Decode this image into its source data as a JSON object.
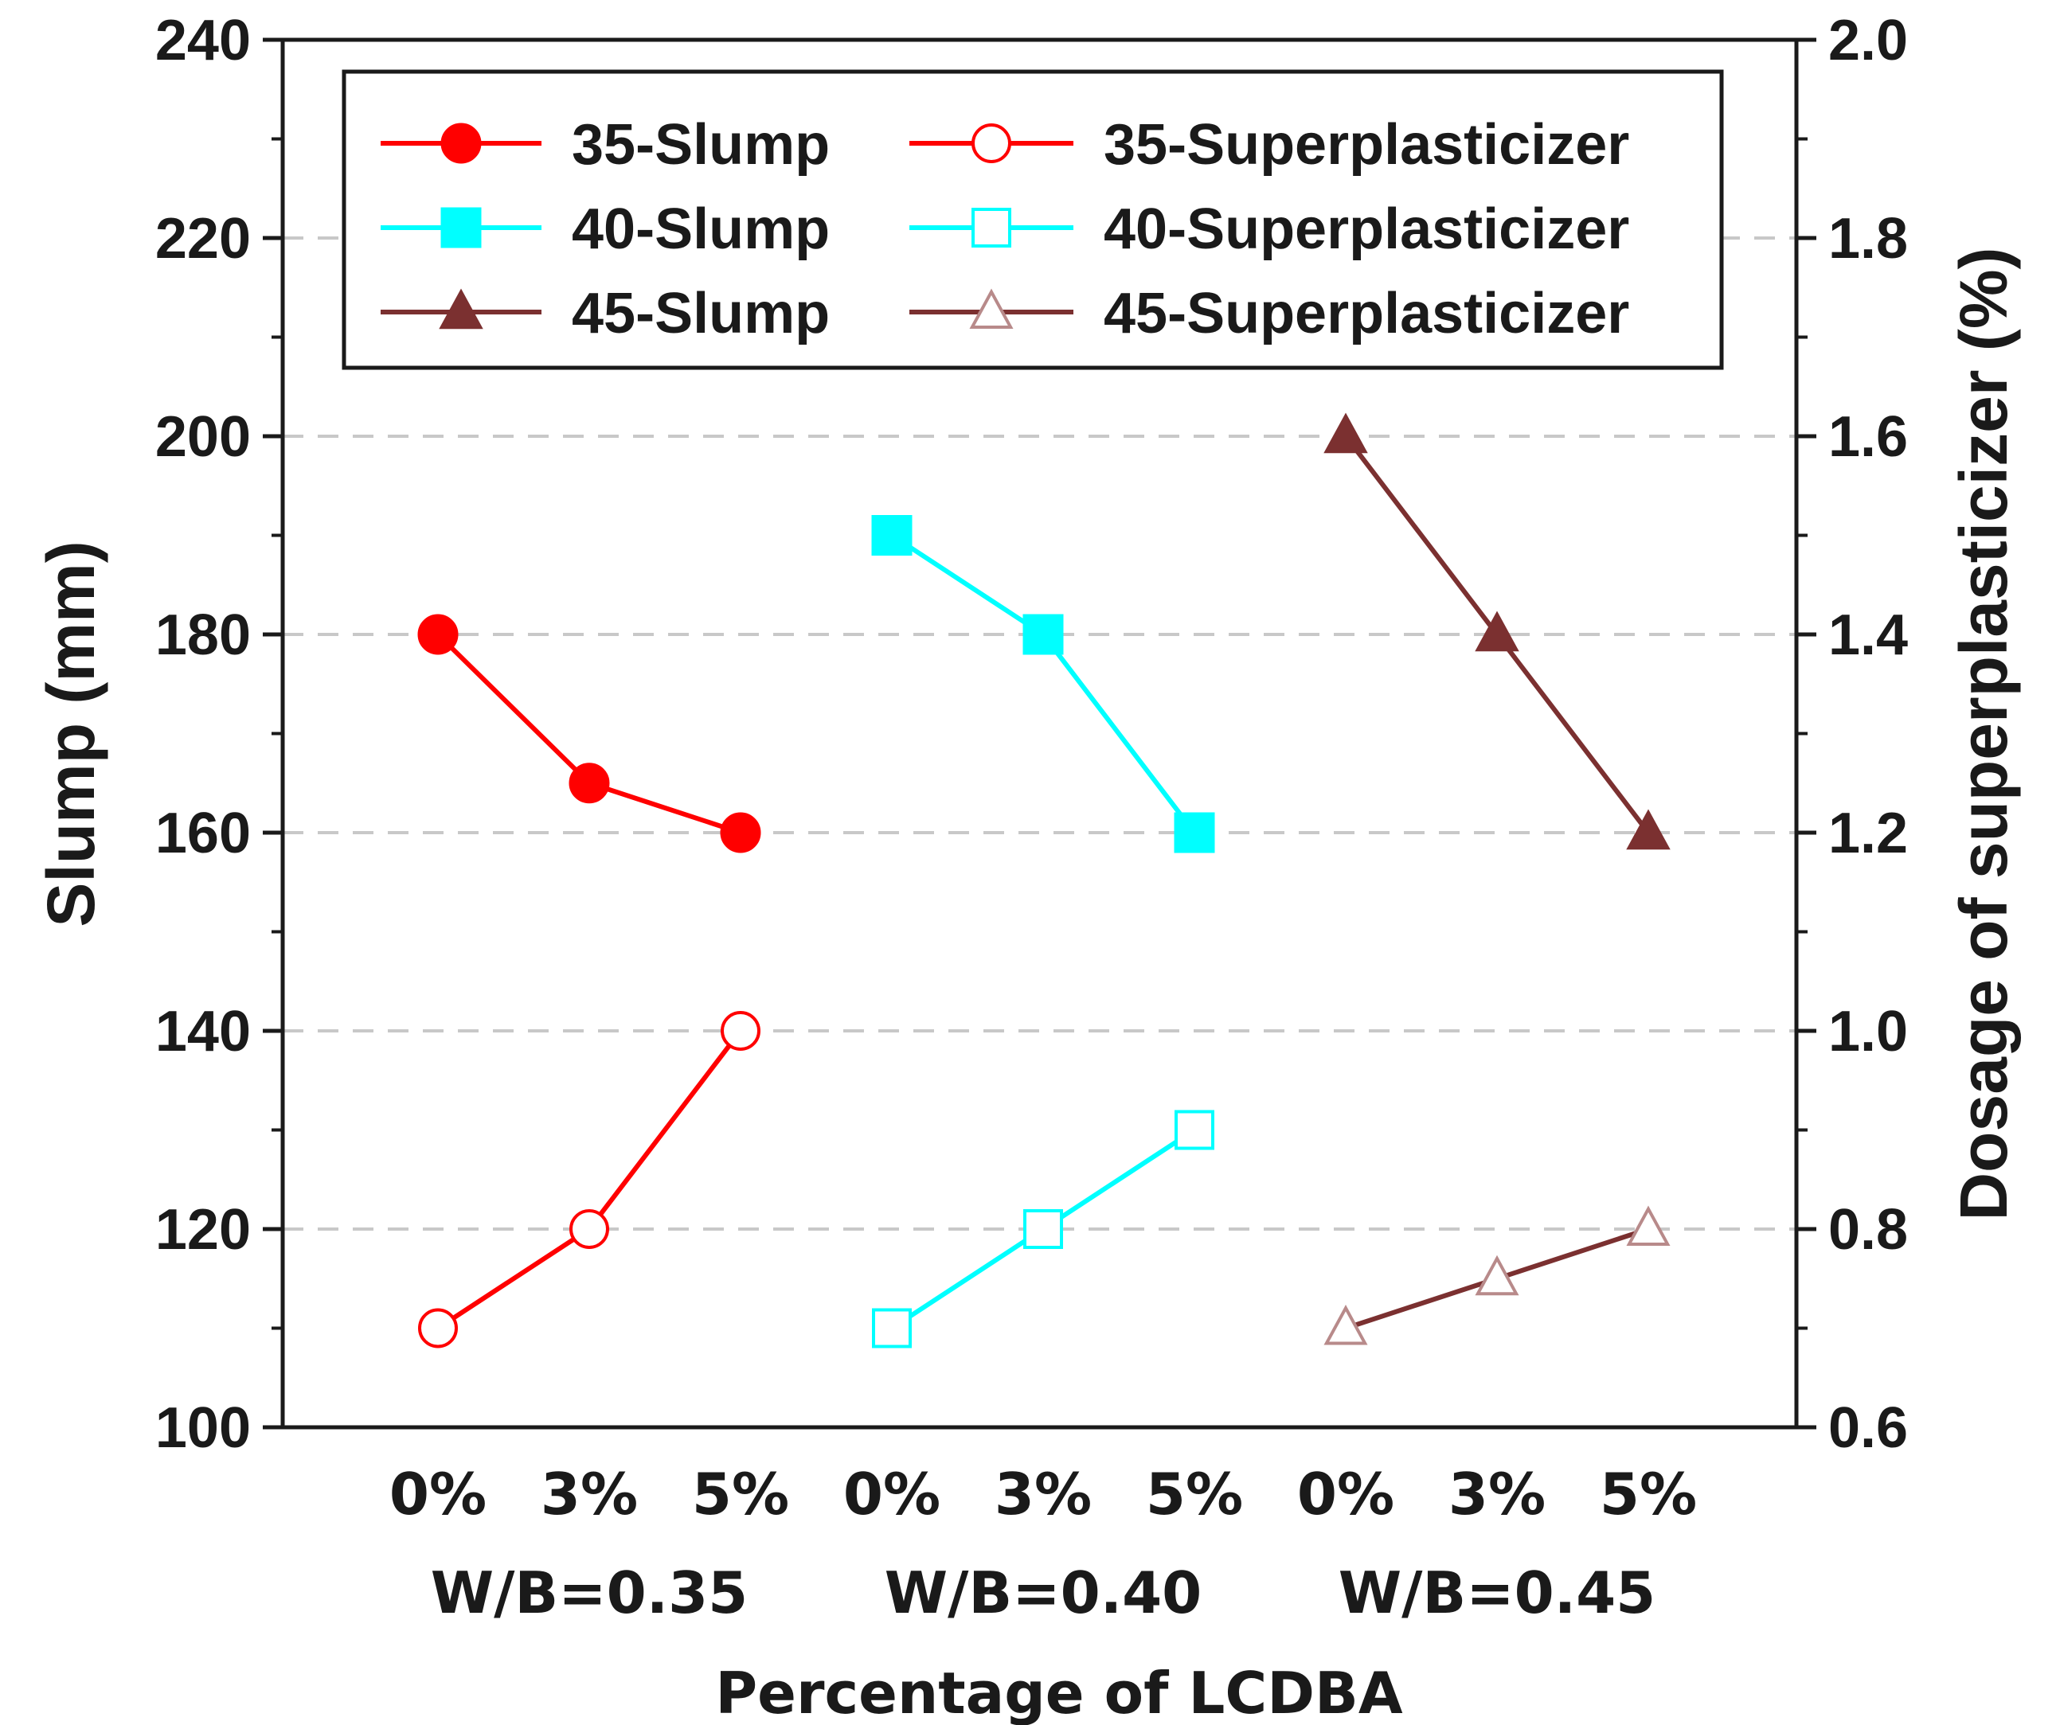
{
  "chart_data": {
    "type": "line",
    "xlabel": "Percentage of LCDBA",
    "ylabel_left": "Slump (mm)",
    "ylabel_right": "Dosage of superplasticizer (%)",
    "ylim_left": [
      100,
      240
    ],
    "ylim_right": [
      0.6,
      2.0
    ],
    "yticks_left": [
      "100",
      "120",
      "140",
      "160",
      "180",
      "200",
      "220",
      "240"
    ],
    "yticks_right": [
      "0.6",
      "0.8",
      "1.0",
      "1.2",
      "1.4",
      "1.6",
      "1.8",
      "2.0"
    ],
    "grid": "horizontal dashed",
    "legend_position": "top-left",
    "groups": [
      {
        "label": "W/B=0.35",
        "categories": [
          "0%",
          "3%",
          "5%"
        ]
      },
      {
        "label": "W/B=0.40",
        "categories": [
          "0%",
          "3%",
          "5%"
        ]
      },
      {
        "label": "W/B=0.45",
        "categories": [
          "0%",
          "3%",
          "5%"
        ]
      }
    ],
    "series": [
      {
        "name": "35-Slump",
        "axis": "left",
        "group": 0,
        "color": "#ff0000",
        "marker": "circle",
        "filled": true,
        "values": [
          180,
          165,
          160
        ]
      },
      {
        "name": "40-Slump",
        "axis": "left",
        "group": 1,
        "color": "#00ffff",
        "marker": "square",
        "filled": true,
        "values": [
          190,
          180,
          160
        ]
      },
      {
        "name": "45-Slump",
        "axis": "left",
        "group": 2,
        "color": "#7b3030",
        "marker": "triangle",
        "filled": true,
        "values": [
          200,
          180,
          160
        ]
      },
      {
        "name": "35-Superplasticizer",
        "axis": "right",
        "group": 0,
        "color": "#ff0000",
        "marker": "circle",
        "filled": false,
        "values": [
          0.7,
          0.8,
          1.0
        ]
      },
      {
        "name": "40-Superplasticizer",
        "axis": "right",
        "group": 1,
        "color": "#00ffff",
        "marker": "square",
        "filled": false,
        "values": [
          0.7,
          0.8,
          0.9
        ]
      },
      {
        "name": "45-Superplasticizer",
        "axis": "right",
        "group": 2,
        "color": "#7b3030",
        "marker": "triangle",
        "filled": false,
        "values": [
          0.7,
          0.75,
          0.8
        ]
      }
    ]
  }
}
